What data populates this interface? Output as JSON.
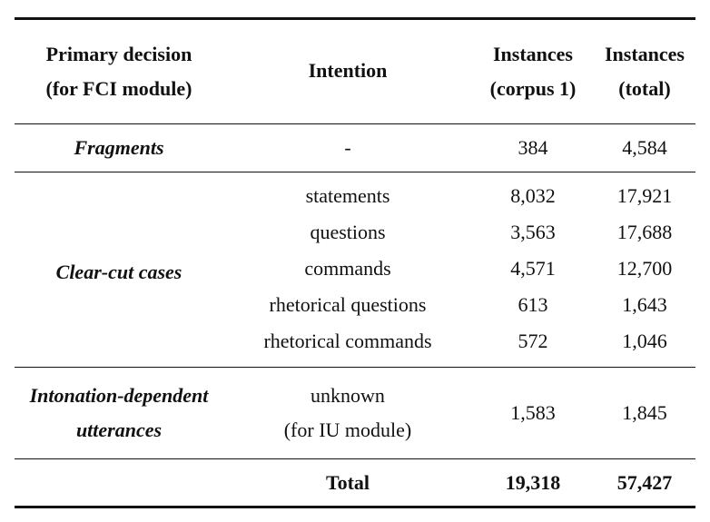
{
  "table": {
    "headers": {
      "col1_line1": "Primary decision",
      "col1_line2": "(for FCI module)",
      "col2": "Intention",
      "col3_line1": "Instances",
      "col3_line2": "(corpus 1)",
      "col4_line1": "Instances",
      "col4_line2": "(total)"
    },
    "fragments": {
      "category": "Fragments",
      "intention": "-",
      "corpus1": "384",
      "total": "4,584"
    },
    "clear_cut": {
      "category": "Clear-cut cases",
      "rows": [
        {
          "intention": "statements",
          "corpus1": "8,032",
          "total": "17,921"
        },
        {
          "intention": "questions",
          "corpus1": "3,563",
          "total": "17,688"
        },
        {
          "intention": "commands",
          "corpus1": "4,571",
          "total": "12,700"
        },
        {
          "intention": "rhetorical questions",
          "corpus1": "613",
          "total": "1,643"
        },
        {
          "intention": "rhetorical commands",
          "corpus1": "572",
          "total": "1,046"
        }
      ]
    },
    "intonation": {
      "category_line1": "Intonation-dependent",
      "category_line2": "utterances",
      "intention_line1": "unknown",
      "intention_line2": "(for IU module)",
      "corpus1": "1,583",
      "total": "1,845"
    },
    "totals": {
      "label": "Total",
      "corpus1": "19,318",
      "total": "57,427"
    }
  }
}
